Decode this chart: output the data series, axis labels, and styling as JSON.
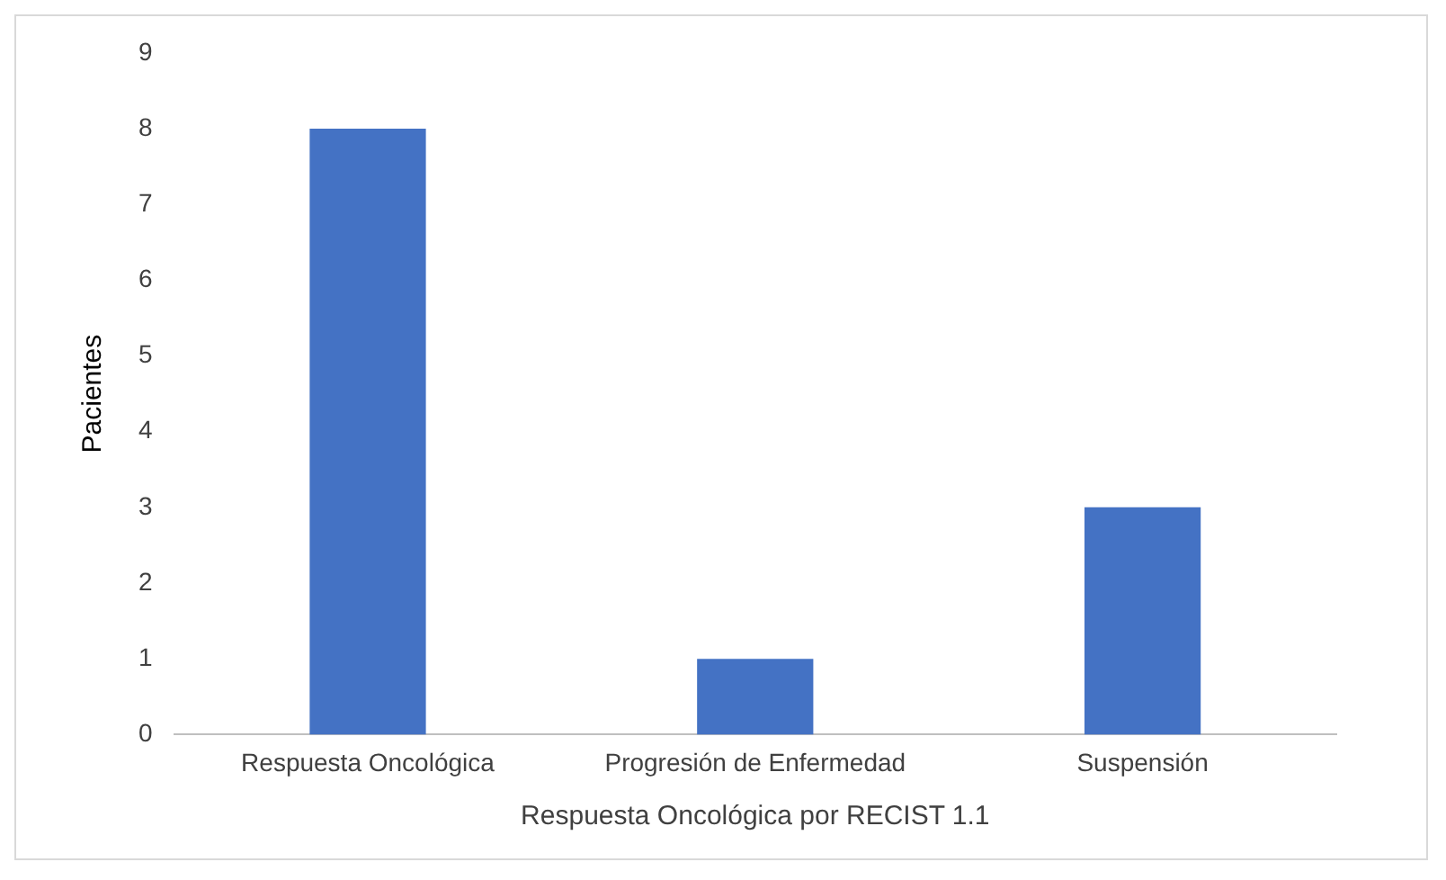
{
  "chart_data": {
    "type": "bar",
    "xlabel": "Respuesta Oncológica por RECIST 1.1",
    "ylabel": "Pacientes",
    "categories": [
      "Respuesta Oncológica",
      "Progresión de Enfermedad",
      "Suspensión"
    ],
    "values": [
      8,
      1,
      3
    ],
    "color": "#4472c4",
    "ylim": [
      0,
      9
    ],
    "yticks": [
      0,
      1,
      2,
      3,
      4,
      5,
      6,
      7,
      8,
      9
    ],
    "grid": false
  }
}
